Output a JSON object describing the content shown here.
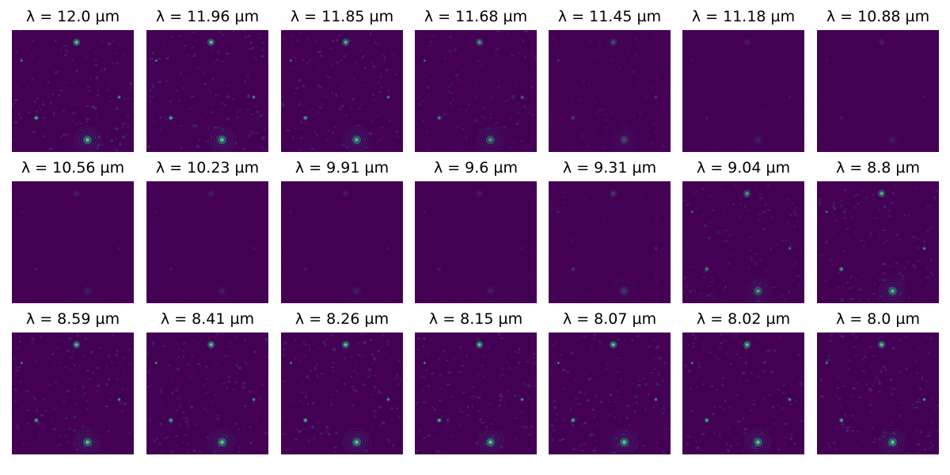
{
  "figure": {
    "panels": [
      {
        "title": "λ = 12.0 µm",
        "brightness": 1.0
      },
      {
        "title": "λ = 11.96 µm",
        "brightness": 0.98
      },
      {
        "title": "λ = 11.85 µm",
        "brightness": 0.9
      },
      {
        "title": "λ = 11.68 µm",
        "brightness": 0.75
      },
      {
        "title": "λ = 11.45 µm",
        "brightness": 0.4
      },
      {
        "title": "λ = 11.18 µm",
        "brightness": 0.15
      },
      {
        "title": "λ = 10.88 µm",
        "brightness": 0.07
      },
      {
        "title": "λ = 10.56 µm",
        "brightness": 0.04
      },
      {
        "title": "λ = 10.23 µm",
        "brightness": 0.02
      },
      {
        "title": "λ = 9.91 µm",
        "brightness": 0.08
      },
      {
        "title": "λ = 9.6 µm",
        "brightness": 0.1
      },
      {
        "title": "λ = 9.31 µm",
        "brightness": 0.3
      },
      {
        "title": "λ = 9.04 µm",
        "brightness": 0.75
      },
      {
        "title": "λ = 8.8 µm",
        "brightness": 0.9
      },
      {
        "title": "λ = 8.59 µm",
        "brightness": 0.95
      },
      {
        "title": "λ = 8.41 µm",
        "brightness": 1.0
      },
      {
        "title": "λ = 8.26 µm",
        "brightness": 1.0
      },
      {
        "title": "λ = 8.15 µm",
        "brightness": 1.0
      },
      {
        "title": "λ = 8.07 µm",
        "brightness": 1.0
      },
      {
        "title": "λ = 8.02 µm",
        "brightness": 1.0
      },
      {
        "title": "λ = 8.0 µm",
        "brightness": 1.0
      }
    ],
    "colors": {
      "background": "#440154",
      "speckle": "#3b528b",
      "bright": "#21918c",
      "core": "#5ec962"
    }
  }
}
